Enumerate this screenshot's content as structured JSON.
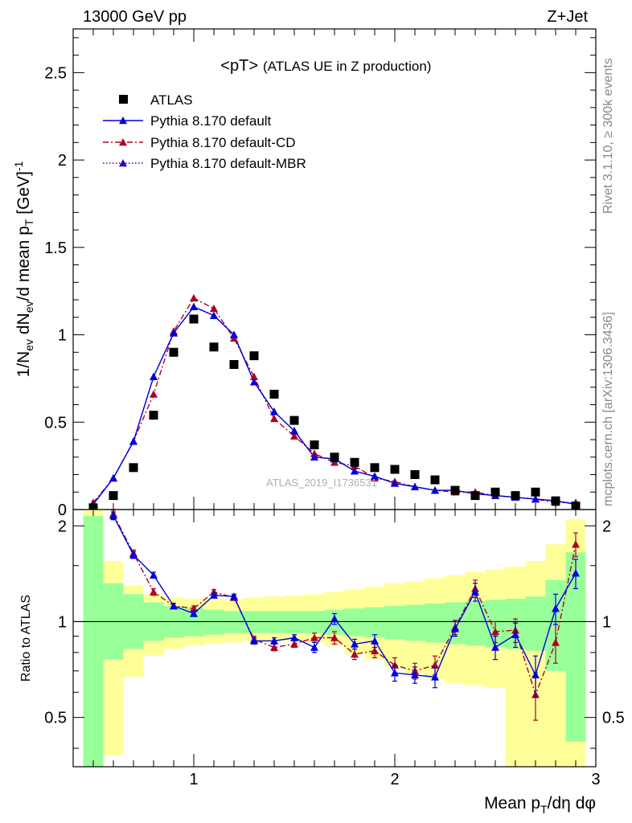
{
  "header": {
    "left_label": "13000 GeV pp",
    "right_label": "Z+Jet"
  },
  "side_labels": {
    "rivet": "Rivet 3.1.10, ≥ 300k events",
    "mcplots": "mcplots.cern.ch [arXiv:1306.3436]"
  },
  "chart_data": [
    {
      "type": "scatter",
      "panel": "main",
      "title": "<pT>",
      "subtitle": "(ATLAS UE in Z production)",
      "watermark": "ATLAS_2019_I1736531",
      "ylabel": "1/N_ev dN_ev/d mean p_T [GeV]^-1",
      "xlim": [
        0.4,
        3.0
      ],
      "ylim": [
        0,
        2.75
      ],
      "yticks": [
        0,
        0.5,
        1,
        1.5,
        2,
        2.5
      ],
      "ytick_labels": [
        "0",
        "0.5",
        "1",
        "1.5",
        "2",
        "2.5"
      ],
      "legend_position": "top-left",
      "x": [
        0.5,
        0.6,
        0.7,
        0.8,
        0.9,
        1.0,
        1.1,
        1.2,
        1.3,
        1.4,
        1.5,
        1.6,
        1.7,
        1.8,
        1.9,
        2.0,
        2.1,
        2.2,
        2.3,
        2.4,
        2.5,
        2.6,
        2.7,
        2.8,
        2.9
      ],
      "series": [
        {
          "name": "ATLAS",
          "color": "#000000",
          "marker": "square",
          "line": "none",
          "values": [
            0.01,
            0.08,
            0.24,
            0.54,
            0.9,
            1.09,
            0.93,
            0.83,
            0.88,
            0.66,
            0.51,
            0.37,
            0.3,
            0.27,
            0.24,
            0.23,
            0.2,
            0.17,
            0.11,
            0.08,
            0.1,
            0.08,
            0.1,
            0.05,
            0.02
          ]
        },
        {
          "name": "Pythia 8.170 default",
          "color": "#0000dd",
          "marker": "triangle",
          "line": "solid",
          "values": [
            0.03,
            0.18,
            0.39,
            0.76,
            1.01,
            1.16,
            1.11,
            1.0,
            0.73,
            0.56,
            0.45,
            0.3,
            0.29,
            0.22,
            0.19,
            0.15,
            0.13,
            0.11,
            0.11,
            0.09,
            0.08,
            0.07,
            0.06,
            0.05,
            0.03
          ]
        },
        {
          "name": "Pythia 8.170 default-CD",
          "color": "#b00020",
          "marker": "triangle",
          "line": "dashdot",
          "values": [
            0.04,
            0.18,
            0.39,
            0.66,
            1.02,
            1.21,
            1.15,
            0.98,
            0.76,
            0.52,
            0.42,
            0.32,
            0.27,
            0.25,
            0.18,
            0.16,
            0.13,
            0.11,
            0.1,
            0.1,
            0.08,
            0.07,
            0.06,
            0.04,
            0.04
          ]
        },
        {
          "name": "Pythia 8.170 default-MBR",
          "color": "#3300aa",
          "marker": "triangle",
          "line": "dotted",
          "values": [
            0.03,
            0.18,
            0.39,
            0.76,
            1.01,
            1.16,
            1.11,
            1.0,
            0.73,
            0.56,
            0.45,
            0.3,
            0.29,
            0.22,
            0.19,
            0.15,
            0.13,
            0.11,
            0.11,
            0.09,
            0.08,
            0.07,
            0.06,
            0.05,
            0.03
          ]
        }
      ]
    },
    {
      "type": "scatter",
      "panel": "ratio",
      "ylabel": "Ratio to ATLAS",
      "xlabel": "Mean p_T/dη dφ",
      "xlim": [
        0.4,
        3.0
      ],
      "ylim": [
        0.35,
        2.25
      ],
      "yscale": "log",
      "yticks": [
        0.5,
        1,
        2
      ],
      "ytick_labels": [
        "0.5",
        "1",
        "2"
      ],
      "xticks": [
        1,
        2,
        3
      ],
      "xtick_labels": [
        "1",
        "2",
        "3"
      ],
      "reference_line": 1,
      "x": [
        0.6,
        0.7,
        0.8,
        0.9,
        1.0,
        1.1,
        1.2,
        1.3,
        1.4,
        1.5,
        1.6,
        1.7,
        1.8,
        1.9,
        2.0,
        2.1,
        2.2,
        2.3,
        2.4,
        2.5,
        2.6,
        2.7,
        2.8,
        2.9
      ],
      "bands": {
        "bin_edges": [
          0.45,
          0.55,
          0.65,
          0.75,
          0.85,
          0.95,
          1.05,
          1.15,
          1.25,
          1.35,
          1.45,
          1.55,
          1.65,
          1.75,
          1.85,
          1.95,
          2.05,
          2.15,
          2.25,
          2.35,
          2.45,
          2.55,
          2.65,
          2.75,
          2.85,
          2.95
        ],
        "stat_color": "#99ff99",
        "syst_color": "#ffff99",
        "stat_lo": [
          0.35,
          0.76,
          0.82,
          0.87,
          0.89,
          0.9,
          0.91,
          0.92,
          0.92,
          0.92,
          0.92,
          0.92,
          0.91,
          0.9,
          0.89,
          0.88,
          0.87,
          0.86,
          0.85,
          0.84,
          0.83,
          0.82,
          0.81,
          0.7,
          0.42
        ],
        "stat_hi": [
          2.15,
          1.32,
          1.22,
          1.15,
          1.12,
          1.1,
          1.09,
          1.08,
          1.08,
          1.08,
          1.08,
          1.08,
          1.09,
          1.1,
          1.11,
          1.12,
          1.13,
          1.14,
          1.15,
          1.16,
          1.17,
          1.18,
          1.2,
          1.35,
          1.65
        ],
        "syst_lo": [
          0.35,
          0.38,
          0.67,
          0.78,
          0.82,
          0.84,
          0.85,
          0.86,
          0.87,
          0.87,
          0.87,
          0.86,
          0.84,
          0.79,
          0.76,
          0.72,
          0.69,
          0.66,
          0.64,
          0.63,
          0.62,
          0.35,
          0.35,
          0.35,
          0.35
        ],
        "syst_hi": [
          2.25,
          1.55,
          1.3,
          1.22,
          1.19,
          1.18,
          1.18,
          1.18,
          1.19,
          1.2,
          1.21,
          1.22,
          1.24,
          1.26,
          1.29,
          1.32,
          1.34,
          1.37,
          1.4,
          1.43,
          1.46,
          1.49,
          1.55,
          1.75,
          2.1
        ]
      },
      "series": [
        {
          "name": "Pythia 8.170 default",
          "color": "#0000dd",
          "marker": "triangle",
          "line": "solid",
          "values": [
            2.15,
            1.62,
            1.4,
            1.12,
            1.06,
            1.21,
            1.2,
            0.87,
            0.87,
            0.89,
            0.83,
            1.02,
            0.85,
            0.87,
            0.69,
            0.68,
            0.67,
            0.95,
            1.24,
            0.83,
            0.91,
            0.68,
            1.1,
            1.42
          ],
          "errors": [
            0.06,
            0.04,
            0.03,
            0.02,
            0.02,
            0.02,
            0.02,
            0.02,
            0.02,
            0.02,
            0.03,
            0.04,
            0.03,
            0.04,
            0.04,
            0.04,
            0.05,
            0.05,
            0.08,
            0.07,
            0.08,
            0.1,
            0.12,
            0.15
          ]
        },
        {
          "name": "Pythia 8.170 default-CD",
          "color": "#b00020",
          "marker": "triangle",
          "line": "dashdot",
          "values": [
            2.18,
            1.64,
            1.24,
            1.12,
            1.1,
            1.24,
            1.19,
            0.88,
            0.83,
            0.85,
            0.89,
            0.89,
            0.79,
            0.81,
            0.73,
            0.7,
            0.73,
            0.96,
            1.27,
            0.93,
            0.94,
            0.59,
            0.86,
            1.75
          ],
          "errors": [
            0.06,
            0.04,
            0.03,
            0.02,
            0.02,
            0.02,
            0.02,
            0.02,
            0.02,
            0.02,
            0.03,
            0.04,
            0.03,
            0.04,
            0.04,
            0.04,
            0.05,
            0.05,
            0.08,
            0.07,
            0.08,
            0.1,
            0.12,
            0.15
          ]
        }
      ]
    }
  ]
}
